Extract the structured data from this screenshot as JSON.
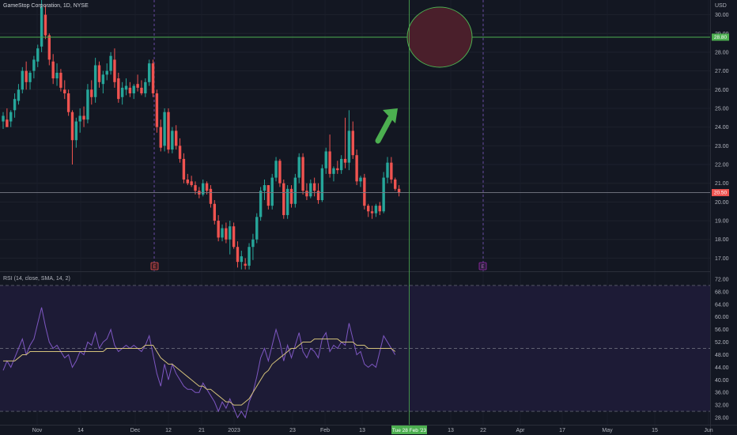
{
  "header": {
    "symbol": "GameStop Corporation, 1D, NYSE",
    "currency": "USD"
  },
  "colors": {
    "background": "#131722",
    "up": "#26a69a",
    "down": "#ef5350",
    "grid": "#1e222d",
    "rsi_line": "#7e57c2",
    "rsi_ma": "#d4c27a",
    "hline": "#4caf50",
    "arrow": "#4caf50",
    "ellipse_fill": "#4a1f2b",
    "ellipse_stroke": "#4caf50"
  },
  "price_axis": {
    "ticks": [
      "30.00",
      "29.00",
      "28.00",
      "27.00",
      "26.00",
      "25.00",
      "24.00",
      "23.00",
      "22.00",
      "21.00",
      "20.00",
      "19.00",
      "18.00",
      "17.00"
    ]
  },
  "rsi_axis": {
    "ticks": [
      "72.00",
      "68.00",
      "64.00",
      "60.00",
      "56.00",
      "52.00",
      "48.00",
      "44.00",
      "40.00",
      "36.00",
      "32.00",
      "28.00"
    ]
  },
  "rsi_label": "RSI (14, close, SMA, 14, 2)",
  "time_axis": {
    "ticks": [
      "Nov",
      "14",
      "Dec",
      "12",
      "21",
      "2023",
      "23",
      "Feb",
      "13",
      "13",
      "22",
      "Apr",
      "17",
      "May",
      "15",
      "Jun"
    ]
  },
  "crosshair_time": "Tue 28 Feb '23",
  "badges": {
    "hline_price": "28.80",
    "last_price": "20.50",
    "earnings_marker": "E",
    "dividend_marker": "E"
  },
  "chart_data": [
    {
      "type": "candlestick",
      "title": "GameStop Corporation, 1D, NYSE",
      "ylim": [
        16.3,
        30.7
      ],
      "horizontal_line": 28.8,
      "last_price": 20.5,
      "candles": [
        {
          "o": 24.3,
          "h": 24.8,
          "l": 23.9,
          "c": 24.6
        },
        {
          "o": 24.4,
          "h": 25.0,
          "l": 24.0,
          "c": 24.0
        },
        {
          "o": 24.3,
          "h": 24.9,
          "l": 24.0,
          "c": 24.8
        },
        {
          "o": 24.9,
          "h": 25.8,
          "l": 24.5,
          "c": 25.5
        },
        {
          "o": 25.4,
          "h": 26.3,
          "l": 25.2,
          "c": 26.0
        },
        {
          "o": 26.0,
          "h": 27.2,
          "l": 25.8,
          "c": 27.0
        },
        {
          "o": 27.0,
          "h": 27.5,
          "l": 26.0,
          "c": 26.4
        },
        {
          "o": 26.4,
          "h": 27.0,
          "l": 26.0,
          "c": 26.9
        },
        {
          "o": 27.0,
          "h": 27.8,
          "l": 26.6,
          "c": 27.6
        },
        {
          "o": 27.5,
          "h": 28.4,
          "l": 27.2,
          "c": 28.2
        },
        {
          "o": 28.3,
          "h": 31.2,
          "l": 28.0,
          "c": 30.4
        },
        {
          "o": 30.0,
          "h": 30.5,
          "l": 28.7,
          "c": 28.9
        },
        {
          "o": 28.9,
          "h": 29.0,
          "l": 27.3,
          "c": 27.6
        },
        {
          "o": 27.5,
          "h": 27.9,
          "l": 26.3,
          "c": 26.6
        },
        {
          "o": 26.6,
          "h": 27.4,
          "l": 26.2,
          "c": 26.9
        },
        {
          "o": 26.9,
          "h": 27.1,
          "l": 25.9,
          "c": 26.1
        },
        {
          "o": 26.0,
          "h": 26.5,
          "l": 25.5,
          "c": 25.8
        },
        {
          "o": 25.8,
          "h": 26.0,
          "l": 24.6,
          "c": 24.8
        },
        {
          "o": 24.8,
          "h": 24.9,
          "l": 22.0,
          "c": 23.3
        },
        {
          "o": 23.3,
          "h": 24.5,
          "l": 22.9,
          "c": 24.3
        },
        {
          "o": 24.3,
          "h": 25.0,
          "l": 23.7,
          "c": 24.6
        },
        {
          "o": 24.6,
          "h": 25.1,
          "l": 24.0,
          "c": 24.4
        },
        {
          "o": 24.4,
          "h": 26.3,
          "l": 24.2,
          "c": 26.0
        },
        {
          "o": 26.0,
          "h": 26.5,
          "l": 25.2,
          "c": 25.6
        },
        {
          "o": 25.6,
          "h": 27.7,
          "l": 25.3,
          "c": 27.3
        },
        {
          "o": 27.3,
          "h": 27.5,
          "l": 26.1,
          "c": 26.4
        },
        {
          "o": 26.3,
          "h": 27.0,
          "l": 25.8,
          "c": 26.8
        },
        {
          "o": 26.8,
          "h": 27.4,
          "l": 26.5,
          "c": 27.0
        },
        {
          "o": 27.0,
          "h": 28.0,
          "l": 26.8,
          "c": 27.8
        },
        {
          "o": 27.6,
          "h": 28.2,
          "l": 26.1,
          "c": 26.4
        },
        {
          "o": 26.6,
          "h": 26.9,
          "l": 25.3,
          "c": 25.5
        },
        {
          "o": 25.6,
          "h": 26.4,
          "l": 25.2,
          "c": 26.1
        },
        {
          "o": 26.0,
          "h": 26.6,
          "l": 25.7,
          "c": 26.2
        },
        {
          "o": 26.1,
          "h": 26.4,
          "l": 25.6,
          "c": 25.8
        },
        {
          "o": 25.8,
          "h": 26.3,
          "l": 25.5,
          "c": 26.2
        },
        {
          "o": 26.3,
          "h": 26.8,
          "l": 25.9,
          "c": 26.1
        },
        {
          "o": 26.1,
          "h": 26.5,
          "l": 25.7,
          "c": 25.8
        },
        {
          "o": 25.8,
          "h": 26.6,
          "l": 25.6,
          "c": 26.4
        },
        {
          "o": 26.4,
          "h": 27.6,
          "l": 26.2,
          "c": 27.4
        },
        {
          "o": 27.4,
          "h": 27.6,
          "l": 25.6,
          "c": 25.8
        },
        {
          "o": 25.8,
          "h": 26.0,
          "l": 23.7,
          "c": 24.0
        },
        {
          "o": 24.0,
          "h": 24.4,
          "l": 22.7,
          "c": 22.9
        },
        {
          "o": 23.0,
          "h": 25.0,
          "l": 22.7,
          "c": 24.8
        },
        {
          "o": 24.8,
          "h": 25.0,
          "l": 22.6,
          "c": 22.8
        },
        {
          "o": 22.8,
          "h": 24.0,
          "l": 22.6,
          "c": 23.8
        },
        {
          "o": 23.8,
          "h": 24.1,
          "l": 22.8,
          "c": 23.0
        },
        {
          "o": 23.0,
          "h": 23.4,
          "l": 22.1,
          "c": 22.3
        },
        {
          "o": 22.3,
          "h": 22.6,
          "l": 21.0,
          "c": 21.2
        },
        {
          "o": 21.2,
          "h": 21.5,
          "l": 20.9,
          "c": 21.0
        },
        {
          "o": 21.1,
          "h": 21.4,
          "l": 20.8,
          "c": 20.9
        },
        {
          "o": 20.9,
          "h": 21.1,
          "l": 20.4,
          "c": 20.6
        },
        {
          "o": 20.6,
          "h": 20.8,
          "l": 20.2,
          "c": 20.4
        },
        {
          "o": 20.4,
          "h": 21.2,
          "l": 20.3,
          "c": 21.0
        },
        {
          "o": 21.0,
          "h": 21.1,
          "l": 20.4,
          "c": 20.6
        },
        {
          "o": 20.7,
          "h": 20.9,
          "l": 19.7,
          "c": 19.9
        },
        {
          "o": 19.9,
          "h": 20.1,
          "l": 18.8,
          "c": 19.0
        },
        {
          "o": 19.0,
          "h": 19.3,
          "l": 17.9,
          "c": 18.1
        },
        {
          "o": 18.1,
          "h": 18.8,
          "l": 17.9,
          "c": 18.6
        },
        {
          "o": 18.6,
          "h": 18.9,
          "l": 17.8,
          "c": 18.0
        },
        {
          "o": 18.0,
          "h": 19.0,
          "l": 17.2,
          "c": 18.7
        },
        {
          "o": 18.7,
          "h": 18.9,
          "l": 17.5,
          "c": 17.6
        },
        {
          "o": 17.6,
          "h": 17.9,
          "l": 16.5,
          "c": 16.8
        },
        {
          "o": 16.8,
          "h": 17.4,
          "l": 16.4,
          "c": 17.1
        },
        {
          "o": 16.7,
          "h": 17.0,
          "l": 16.4,
          "c": 16.6
        },
        {
          "o": 16.6,
          "h": 17.8,
          "l": 16.4,
          "c": 17.6
        },
        {
          "o": 17.6,
          "h": 18.3,
          "l": 16.9,
          "c": 18.0
        },
        {
          "o": 18.0,
          "h": 19.4,
          "l": 17.8,
          "c": 19.2
        },
        {
          "o": 19.2,
          "h": 20.8,
          "l": 19.0,
          "c": 20.6
        },
        {
          "o": 20.6,
          "h": 21.2,
          "l": 20.1,
          "c": 20.9
        },
        {
          "o": 20.9,
          "h": 20.9,
          "l": 19.6,
          "c": 19.8
        },
        {
          "o": 19.8,
          "h": 21.5,
          "l": 19.6,
          "c": 21.3
        },
        {
          "o": 21.3,
          "h": 22.4,
          "l": 21.1,
          "c": 22.2
        },
        {
          "o": 22.2,
          "h": 22.3,
          "l": 20.8,
          "c": 21.0
        },
        {
          "o": 21.0,
          "h": 21.2,
          "l": 19.1,
          "c": 19.3
        },
        {
          "o": 19.3,
          "h": 20.9,
          "l": 19.1,
          "c": 20.7
        },
        {
          "o": 20.7,
          "h": 20.9,
          "l": 19.7,
          "c": 19.9
        },
        {
          "o": 19.9,
          "h": 21.5,
          "l": 19.7,
          "c": 21.3
        },
        {
          "o": 21.3,
          "h": 22.6,
          "l": 21.0,
          "c": 22.4
        },
        {
          "o": 22.4,
          "h": 22.6,
          "l": 20.4,
          "c": 20.6
        },
        {
          "o": 20.6,
          "h": 21.0,
          "l": 20.1,
          "c": 20.3
        },
        {
          "o": 20.3,
          "h": 21.2,
          "l": 20.2,
          "c": 21.0
        },
        {
          "o": 21.0,
          "h": 21.3,
          "l": 20.3,
          "c": 20.6
        },
        {
          "o": 20.6,
          "h": 21.0,
          "l": 19.9,
          "c": 20.1
        },
        {
          "o": 20.1,
          "h": 22.0,
          "l": 20.0,
          "c": 21.8
        },
        {
          "o": 21.8,
          "h": 22.9,
          "l": 21.5,
          "c": 22.7
        },
        {
          "o": 22.7,
          "h": 23.6,
          "l": 21.3,
          "c": 21.5
        },
        {
          "o": 21.5,
          "h": 21.9,
          "l": 21.1,
          "c": 21.8
        },
        {
          "o": 21.8,
          "h": 22.2,
          "l": 21.5,
          "c": 21.7
        },
        {
          "o": 21.7,
          "h": 22.5,
          "l": 21.5,
          "c": 22.3
        },
        {
          "o": 22.3,
          "h": 24.5,
          "l": 21.8,
          "c": 22.1
        },
        {
          "o": 22.1,
          "h": 24.9,
          "l": 21.7,
          "c": 23.8
        },
        {
          "o": 23.8,
          "h": 24.3,
          "l": 22.3,
          "c": 22.5
        },
        {
          "o": 22.5,
          "h": 22.8,
          "l": 20.9,
          "c": 21.1
        },
        {
          "o": 21.1,
          "h": 21.4,
          "l": 20.8,
          "c": 21.3
        },
        {
          "o": 21.3,
          "h": 21.5,
          "l": 19.6,
          "c": 19.8
        },
        {
          "o": 19.8,
          "h": 19.9,
          "l": 19.2,
          "c": 19.5
        },
        {
          "o": 19.5,
          "h": 19.8,
          "l": 19.1,
          "c": 19.4
        },
        {
          "o": 19.4,
          "h": 19.9,
          "l": 19.2,
          "c": 19.8
        },
        {
          "o": 19.8,
          "h": 20.0,
          "l": 19.3,
          "c": 19.5
        },
        {
          "o": 19.5,
          "h": 21.6,
          "l": 19.4,
          "c": 21.3
        },
        {
          "o": 21.3,
          "h": 22.4,
          "l": 21.0,
          "c": 22.1
        },
        {
          "o": 22.1,
          "h": 22.4,
          "l": 21.0,
          "c": 21.2
        },
        {
          "o": 21.2,
          "h": 21.3,
          "l": 20.6,
          "c": 20.7
        },
        {
          "o": 20.7,
          "h": 20.9,
          "l": 20.3,
          "c": 20.5
        }
      ]
    },
    {
      "type": "line",
      "title": "RSI (14, close, SMA, 14, 2)",
      "ylim": [
        26,
        74
      ],
      "bands": [
        70,
        30
      ],
      "series": [
        {
          "values": [
            43,
            46,
            44,
            47,
            50,
            53,
            48,
            51,
            53,
            58,
            63,
            57,
            52,
            50,
            51,
            49,
            47,
            48,
            44,
            46,
            49,
            48,
            52,
            51,
            55,
            50,
            52,
            53,
            56,
            51,
            49,
            50,
            51,
            50,
            51,
            50,
            49,
            51,
            54,
            48,
            42,
            38,
            45,
            40,
            45,
            42,
            40,
            38,
            37,
            37,
            36,
            36,
            39,
            37,
            35,
            33,
            30,
            33,
            31,
            34,
            31,
            28,
            30,
            28,
            33,
            36,
            41,
            47,
            50,
            46,
            51,
            56,
            52,
            46,
            51,
            47,
            51,
            55,
            49,
            47,
            50,
            49,
            47,
            53,
            55,
            49,
            51,
            50,
            52,
            51,
            58,
            53,
            48,
            49,
            45,
            44,
            45,
            44,
            49,
            54,
            52,
            50,
            48
          ]
        },
        {
          "values": [
            46,
            46,
            46,
            46,
            47,
            48,
            48,
            49,
            49,
            49,
            49,
            49,
            49,
            49,
            49,
            49,
            49,
            49,
            49,
            49,
            49,
            49,
            49,
            49,
            49,
            49,
            49,
            50,
            50,
            50,
            50,
            50,
            50,
            50,
            50,
            50,
            50,
            51,
            51,
            51,
            49,
            47,
            46,
            45,
            45,
            44,
            43,
            42,
            41,
            40,
            39,
            38,
            38,
            37,
            37,
            36,
            35,
            34,
            33,
            33,
            32,
            32,
            32,
            33,
            34,
            36,
            38,
            40,
            42,
            43,
            45,
            46,
            47,
            48,
            49,
            50,
            50,
            51,
            52,
            52,
            52,
            53,
            53,
            53,
            53,
            53,
            53,
            53,
            52,
            52,
            52,
            52,
            51,
            51,
            51,
            50,
            50,
            50,
            50,
            50,
            50,
            50,
            49
          ]
        }
      ]
    }
  ]
}
